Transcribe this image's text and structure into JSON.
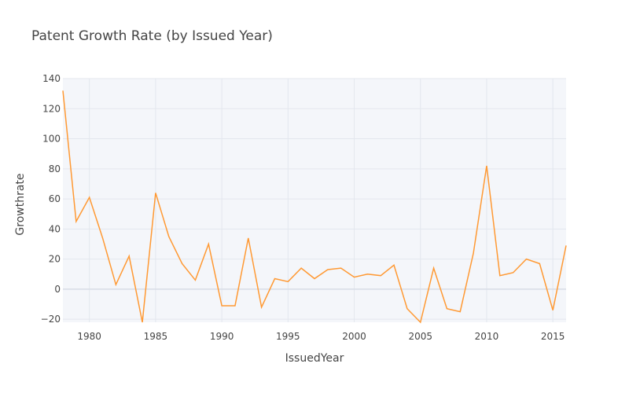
{
  "chart_data": {
    "type": "line",
    "title": "Patent Growth Rate (by Issued Year)",
    "xlabel": "IssuedYear",
    "ylabel": "Growthrate",
    "xlim": [
      1978,
      2016
    ],
    "ylim": [
      -22,
      140
    ],
    "grid": true,
    "x_ticks": [
      1980,
      1985,
      1990,
      1995,
      2000,
      2005,
      2010,
      2015
    ],
    "y_ticks": [
      -20,
      0,
      20,
      40,
      60,
      80,
      100,
      120,
      140
    ],
    "line_color": "#ff9933",
    "plot_bg": "#f4f6fa",
    "series": [
      {
        "x": [
          1978,
          1979,
          1980,
          1981,
          1982,
          1983,
          1984,
          1985,
          1986,
          1987,
          1988,
          1989,
          1990,
          1991,
          1992,
          1993,
          1994,
          1995,
          1996,
          1997,
          1998,
          1999,
          2000,
          2001,
          2002,
          2003,
          2004,
          2005,
          2006,
          2007,
          2008,
          2009,
          2010,
          2011,
          2012,
          2013,
          2014,
          2015,
          2016
        ],
        "y": [
          132,
          45,
          61,
          34,
          3,
          22,
          -22,
          64,
          35,
          17,
          6,
          30,
          -11,
          -11,
          34,
          -12,
          7,
          5,
          14,
          7,
          13,
          14,
          8,
          10,
          9,
          16,
          -13,
          -22,
          14,
          -13,
          -15,
          24,
          82,
          9,
          11,
          20,
          17,
          -14,
          29
        ]
      }
    ]
  }
}
